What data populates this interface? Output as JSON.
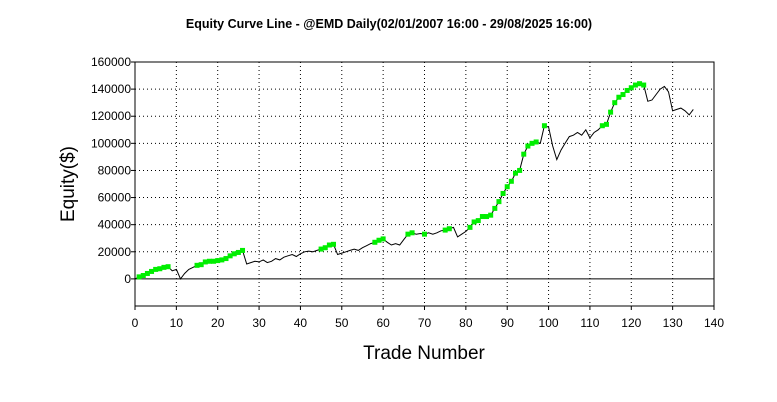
{
  "chart_data": {
    "type": "line",
    "title": "Equity Curve Line - @EMD Daily(02/01/2007 16:00 - 29/08/2025 16:00)",
    "xlabel": "Trade Number",
    "ylabel": "Equity($)",
    "xlim": [
      0,
      140
    ],
    "ylim": [
      -20000,
      160000
    ],
    "x_ticks": [
      0,
      10,
      20,
      30,
      40,
      50,
      60,
      70,
      80,
      90,
      100,
      110,
      120,
      130,
      140
    ],
    "y_ticks": [
      0,
      20000,
      40000,
      60000,
      80000,
      100000,
      120000,
      140000,
      160000
    ],
    "grid": true,
    "line_color": "#000000",
    "highlight_color": "#00ee00",
    "series": [
      {
        "values": [
          [
            0,
            0
          ],
          [
            1,
            1500
          ],
          [
            2,
            2500
          ],
          [
            3,
            4000
          ],
          [
            4,
            5500
          ],
          [
            5,
            7000
          ],
          [
            6,
            7500
          ],
          [
            7,
            8500
          ],
          [
            8,
            9000
          ],
          [
            9,
            6000
          ],
          [
            10,
            7000
          ],
          [
            11,
            0
          ],
          [
            12,
            4000
          ],
          [
            13,
            7000
          ],
          [
            14,
            8500
          ],
          [
            15,
            10000
          ],
          [
            16,
            10500
          ],
          [
            17,
            12500
          ],
          [
            18,
            13000
          ],
          [
            19,
            13000
          ],
          [
            20,
            13500
          ],
          [
            21,
            14000
          ],
          [
            22,
            15000
          ],
          [
            23,
            17000
          ],
          [
            24,
            18500
          ],
          [
            25,
            19500
          ],
          [
            26,
            21000
          ],
          [
            27,
            11000
          ],
          [
            28,
            12000
          ],
          [
            29,
            13000
          ],
          [
            30,
            12500
          ],
          [
            31,
            14000
          ],
          [
            32,
            12000
          ],
          [
            33,
            13000
          ],
          [
            34,
            15000
          ],
          [
            35,
            14000
          ],
          [
            36,
            16000
          ],
          [
            37,
            17000
          ],
          [
            38,
            18000
          ],
          [
            39,
            16500
          ],
          [
            40,
            18500
          ],
          [
            41,
            20000
          ],
          [
            42,
            20500
          ],
          [
            43,
            20000
          ],
          [
            44,
            21000
          ],
          [
            45,
            22000
          ],
          [
            46,
            23000
          ],
          [
            47,
            25000
          ],
          [
            48,
            25500
          ],
          [
            49,
            18000
          ],
          [
            50,
            19000
          ],
          [
            51,
            20000
          ],
          [
            52,
            21000
          ],
          [
            53,
            22000
          ],
          [
            54,
            21000
          ],
          [
            55,
            23000
          ],
          [
            56,
            24500
          ],
          [
            57,
            26000
          ],
          [
            58,
            27000
          ],
          [
            59,
            28500
          ],
          [
            60,
            29500
          ],
          [
            61,
            27000
          ],
          [
            62,
            25000
          ],
          [
            63,
            26000
          ],
          [
            64,
            25000
          ],
          [
            65,
            29000
          ],
          [
            66,
            33000
          ],
          [
            67,
            34000
          ],
          [
            68,
            33000
          ],
          [
            69,
            33500
          ],
          [
            70,
            33000
          ],
          [
            71,
            34000
          ],
          [
            72,
            33000
          ],
          [
            73,
            34000
          ],
          [
            74,
            35500
          ],
          [
            75,
            36000
          ],
          [
            76,
            37000
          ],
          [
            77,
            38000
          ],
          [
            78,
            31000
          ],
          [
            79,
            33000
          ],
          [
            80,
            35000
          ],
          [
            81,
            38000
          ],
          [
            82,
            42000
          ],
          [
            83,
            43000
          ],
          [
            84,
            46000
          ],
          [
            85,
            46000
          ],
          [
            86,
            47000
          ],
          [
            87,
            52000
          ],
          [
            88,
            57000
          ],
          [
            89,
            63000
          ],
          [
            90,
            68000
          ],
          [
            91,
            72000
          ],
          [
            92,
            78000
          ],
          [
            93,
            80000
          ],
          [
            94,
            92000
          ],
          [
            95,
            98000
          ],
          [
            96,
            100000
          ],
          [
            97,
            101000
          ],
          [
            98,
            100000
          ],
          [
            99,
            113000
          ],
          [
            100,
            112000
          ],
          [
            101,
            98000
          ],
          [
            102,
            88000
          ],
          [
            103,
            95000
          ],
          [
            104,
            100000
          ],
          [
            105,
            105000
          ],
          [
            106,
            106000
          ],
          [
            107,
            108000
          ],
          [
            108,
            106000
          ],
          [
            109,
            110000
          ],
          [
            110,
            104000
          ],
          [
            111,
            108000
          ],
          [
            112,
            110000
          ],
          [
            113,
            113000
          ],
          [
            114,
            114000
          ],
          [
            115,
            123000
          ],
          [
            116,
            130000
          ],
          [
            117,
            134000
          ],
          [
            118,
            136000
          ],
          [
            119,
            139000
          ],
          [
            120,
            141000
          ],
          [
            121,
            143000
          ],
          [
            122,
            144000
          ],
          [
            123,
            143000
          ],
          [
            124,
            131000
          ],
          [
            125,
            132000
          ],
          [
            126,
            136000
          ],
          [
            127,
            140000
          ],
          [
            128,
            142000
          ],
          [
            129,
            138000
          ],
          [
            130,
            124000
          ],
          [
            131,
            125000
          ],
          [
            132,
            126000
          ],
          [
            133,
            124000
          ],
          [
            134,
            121000
          ],
          [
            135,
            125000
          ]
        ],
        "highlight_indices": [
          1,
          2,
          3,
          4,
          5,
          6,
          7,
          8,
          15,
          16,
          17,
          18,
          19,
          20,
          21,
          22,
          23,
          24,
          25,
          26,
          45,
          46,
          47,
          48,
          58,
          59,
          60,
          66,
          67,
          70,
          75,
          76,
          81,
          82,
          83,
          84,
          85,
          86,
          87,
          88,
          89,
          90,
          91,
          92,
          93,
          94,
          95,
          96,
          97,
          99,
          113,
          114,
          115,
          116,
          117,
          118,
          119,
          120,
          121,
          122,
          123
        ]
      }
    ]
  }
}
